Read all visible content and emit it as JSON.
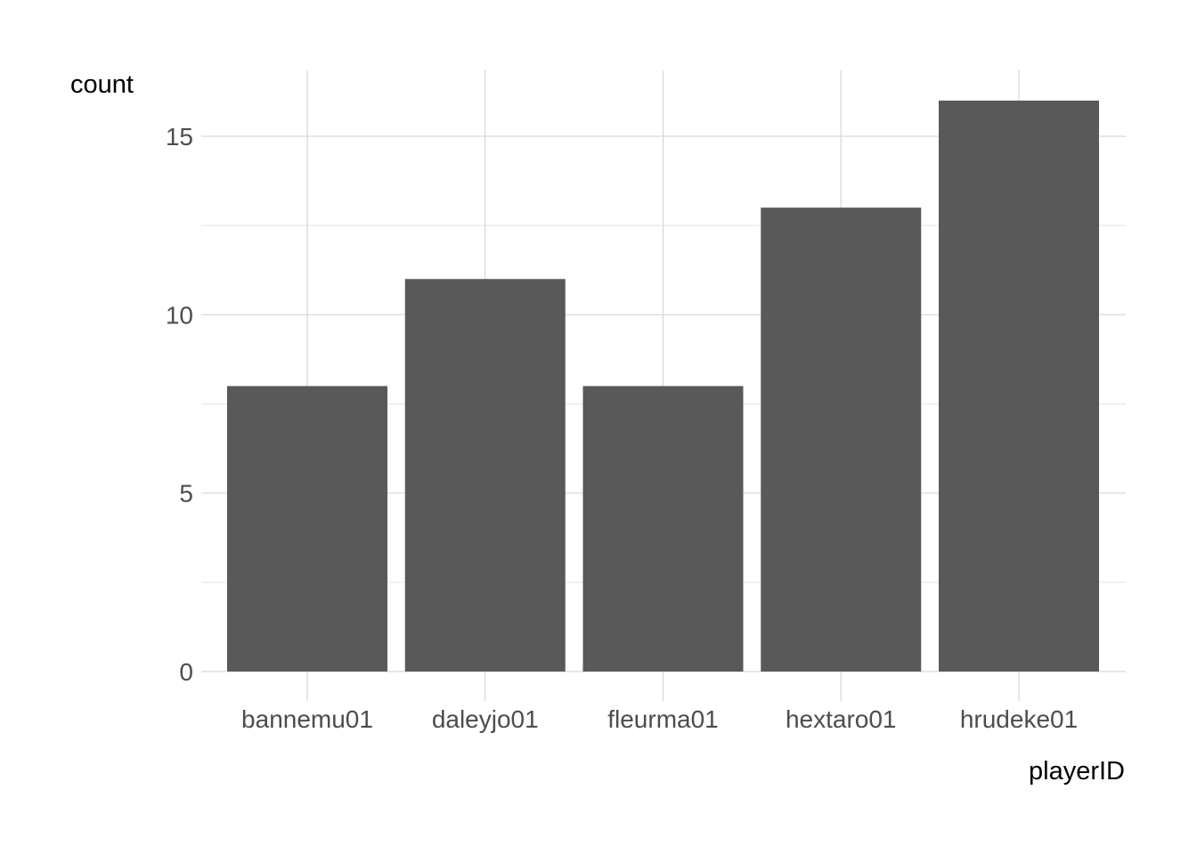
{
  "chart_data": {
    "type": "bar",
    "categories": [
      "bannemu01",
      "daleyjo01",
      "fleurma01",
      "hextaro01",
      "hrudeke01"
    ],
    "values": [
      8,
      11,
      8,
      13,
      16
    ],
    "title": "",
    "xlabel": "playerID",
    "ylabel": "count",
    "ylim": [
      0,
      16.8
    ],
    "y_ticks": [
      0,
      5,
      10,
      15
    ],
    "y_minor_ticks": [
      2.5,
      7.5,
      12.5
    ],
    "grid": true,
    "legend": "none",
    "colors": {
      "bar": "#595959",
      "grid_major": "#d6d6d6",
      "grid_minor": "#e4e4e4",
      "background": "#ffffff"
    }
  }
}
